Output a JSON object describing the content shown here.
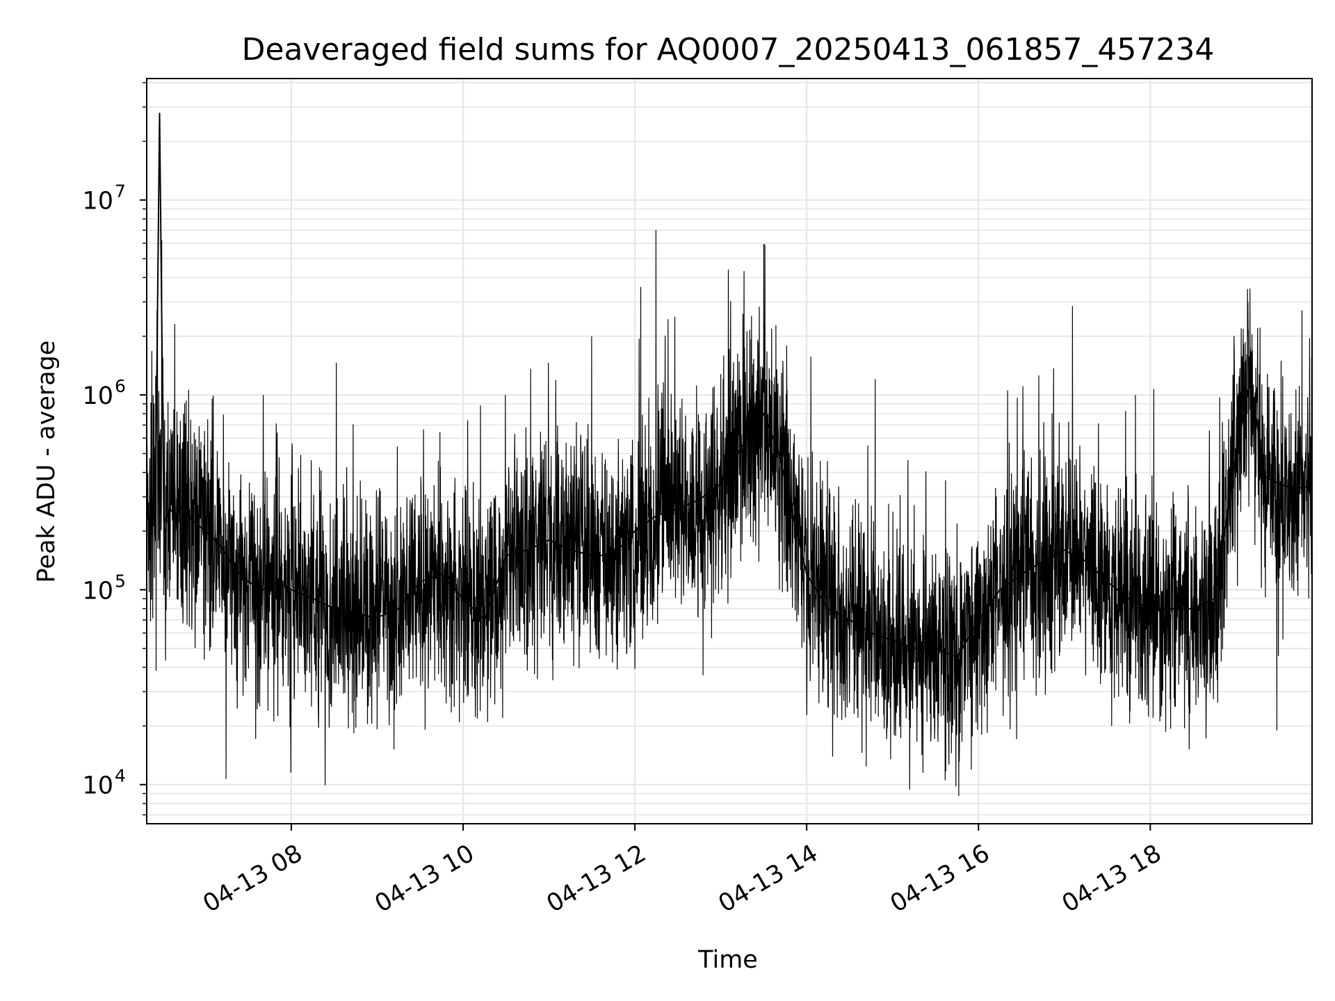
{
  "chart_data": {
    "type": "line",
    "title": "Deaveraged field sums for AQ0007_20250413_061857_457234",
    "xlabel": "Time",
    "ylabel": "Peak ADU - average",
    "yscale": "log",
    "ylim": [
      6300,
      42000000
    ],
    "xlim": [
      "2025-04-13 06:19",
      "2025-04-13 19:53"
    ],
    "grid": true,
    "legend": "none",
    "line_color": "#000000",
    "x_ticks": [
      {
        "t": "2025-04-13 08:00",
        "label": "04-13 08"
      },
      {
        "t": "2025-04-13 10:00",
        "label": "04-13 10"
      },
      {
        "t": "2025-04-13 12:00",
        "label": "04-13 12"
      },
      {
        "t": "2025-04-13 14:00",
        "label": "04-13 14"
      },
      {
        "t": "2025-04-13 16:00",
        "label": "04-13 16"
      },
      {
        "t": "2025-04-13 18:00",
        "label": "04-13 18"
      }
    ],
    "y_ticks": [
      {
        "value": 10000,
        "base": "10",
        "exp": "4"
      },
      {
        "value": 100000,
        "base": "10",
        "exp": "5"
      },
      {
        "value": 1000000,
        "base": "10",
        "exp": "6"
      },
      {
        "value": 10000000,
        "base": "10",
        "exp": "7"
      }
    ],
    "series": [
      {
        "x": [
          "2025-04-13 06:19",
          "2025-04-13 06:22",
          "2025-04-13 06:25",
          "2025-04-13 06:28",
          "2025-04-13 06:31",
          "2025-04-13 06:35",
          "2025-04-13 06:40",
          "2025-04-13 06:45",
          "2025-04-13 06:50",
          "2025-04-13 07:00",
          "2025-04-13 07:10",
          "2025-04-13 07:20",
          "2025-04-13 07:30",
          "2025-04-13 07:40",
          "2025-04-13 07:50",
          "2025-04-13 08:00",
          "2025-04-13 08:15",
          "2025-04-13 08:30",
          "2025-04-13 08:45",
          "2025-04-13 09:00",
          "2025-04-13 09:15",
          "2025-04-13 09:30",
          "2025-04-13 09:45",
          "2025-04-13 10:00",
          "2025-04-13 10:15",
          "2025-04-13 10:30",
          "2025-04-13 10:45",
          "2025-04-13 11:00",
          "2025-04-13 11:15",
          "2025-04-13 11:30",
          "2025-04-13 11:45",
          "2025-04-13 12:00",
          "2025-04-13 12:15",
          "2025-04-13 12:30",
          "2025-04-13 12:45",
          "2025-04-13 13:00",
          "2025-04-13 13:15",
          "2025-04-13 13:30",
          "2025-04-13 13:40",
          "2025-04-13 13:50",
          "2025-04-13 14:00",
          "2025-04-13 14:15",
          "2025-04-13 14:30",
          "2025-04-13 14:45",
          "2025-04-13 15:00",
          "2025-04-13 15:15",
          "2025-04-13 15:30",
          "2025-04-13 15:45",
          "2025-04-13 16:00",
          "2025-04-13 16:15",
          "2025-04-13 16:30",
          "2025-04-13 16:45",
          "2025-04-13 17:00",
          "2025-04-13 17:15",
          "2025-04-13 17:30",
          "2025-04-13 17:45",
          "2025-04-13 18:00",
          "2025-04-13 18:15",
          "2025-04-13 18:30",
          "2025-04-13 18:45",
          "2025-04-13 19:00",
          "2025-04-13 19:10",
          "2025-04-13 19:20",
          "2025-04-13 19:30",
          "2025-04-13 19:40",
          "2025-04-13 19:53"
        ],
        "values": [
          250000,
          200000,
          230000,
          28000000,
          220000,
          260000,
          240000,
          280000,
          230000,
          200000,
          170000,
          130000,
          110000,
          100000,
          110000,
          100000,
          90000,
          80000,
          75000,
          72000,
          80000,
          110000,
          120000,
          90000,
          70000,
          150000,
          160000,
          180000,
          160000,
          150000,
          150000,
          200000,
          240000,
          260000,
          290000,
          350000,
          550000,
          800000,
          520000,
          250000,
          120000,
          80000,
          70000,
          60000,
          55000,
          50000,
          50000,
          45000,
          70000,
          100000,
          120000,
          140000,
          160000,
          140000,
          110000,
          90000,
          80000,
          80000,
          80000,
          90000,
          500000,
          1200000,
          380000,
          350000,
          330000,
          340000
        ]
      }
    ]
  }
}
